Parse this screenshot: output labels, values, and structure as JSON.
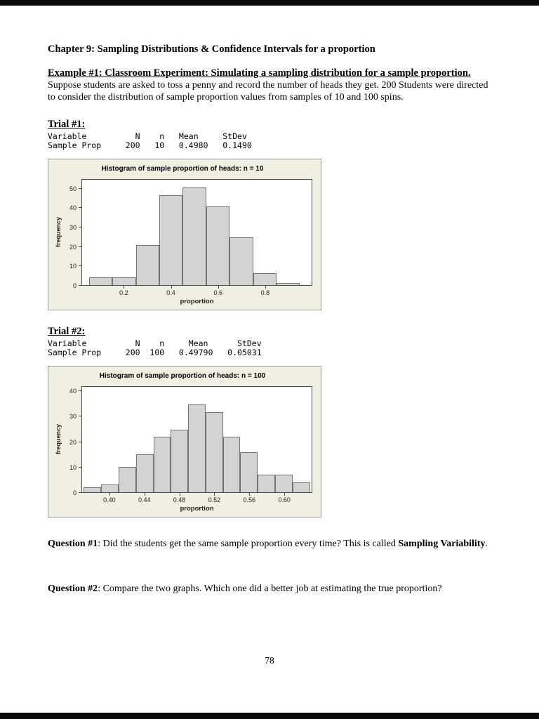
{
  "doc": {
    "chapter_title": "Chapter 9: Sampling Distributions & Confidence Intervals for a proportion",
    "example_heading": "Example #1: Classroom Experiment: Simulating a sampling distribution for a sample proportion.",
    "intro": "Suppose students are asked to toss a penny and record the number of heads they get.  200 Students were directed to consider the distribution of sample proportion values from samples of 10 and 100 spins.",
    "trial1": {
      "heading": "Trial #1:",
      "stats_header": "Variable          N    n   Mean     StDev",
      "stats_row": "Sample Prop     200   10   0.4980   0.1490"
    },
    "trial2": {
      "heading": "Trial #2:",
      "stats_header": "Variable          N    n     Mean      StDev",
      "stats_row": "Sample Prop     200  100   0.49790   0.05031"
    },
    "question1": {
      "label": "Question #1",
      "text": ": Did the students get the same sample proportion every time?  This is called ",
      "term": "Sampling Variability",
      "suffix": "."
    },
    "question2": {
      "label": "Question #2",
      "text": ": Compare the two graphs.  Which one did a better job at estimating the true proportion?"
    },
    "page_number": "78"
  },
  "chart_data": [
    {
      "type": "bar",
      "title": "Histogram of sample proportion of heads: n = 10",
      "xlabel": "proportion",
      "ylabel": "frequency",
      "bin_width": 0.1,
      "bins": [
        0.1,
        0.2,
        0.3,
        0.4,
        0.5,
        0.6,
        0.7,
        0.8,
        0.9
      ],
      "values": [
        4,
        4,
        21,
        47,
        51,
        41,
        25,
        6,
        1
      ],
      "xlim": [
        0.02,
        1.0
      ],
      "ylim": [
        0,
        55
      ],
      "yticks": [
        0,
        10,
        20,
        30,
        40,
        50
      ],
      "xticks": [
        0.2,
        0.4,
        0.6,
        0.8
      ],
      "xtick_labels": [
        "0.2",
        "0.4",
        "0.6",
        "0.8"
      ],
      "grid": false,
      "legend": "none",
      "bar_fill": "#d3d3d3",
      "bar_edge": "#737373"
    },
    {
      "type": "bar",
      "title": "Histogram of sample proportion of heads: n = 100",
      "xlabel": "proportion",
      "ylabel": "frequency",
      "bin_width": 0.02,
      "bins": [
        0.38,
        0.4,
        0.42,
        0.44,
        0.46,
        0.48,
        0.5,
        0.52,
        0.54,
        0.56,
        0.58,
        0.6,
        0.62
      ],
      "values": [
        2,
        3,
        10,
        15,
        22,
        25,
        35,
        32,
        22,
        16,
        7,
        7,
        4
      ],
      "xlim": [
        0.368,
        0.632
      ],
      "ylim": [
        0,
        42
      ],
      "yticks": [
        0,
        10,
        20,
        30,
        40
      ],
      "xticks": [
        0.4,
        0.44,
        0.48,
        0.52,
        0.56,
        0.6
      ],
      "xtick_labels": [
        "0.40",
        "0.44",
        "0.48",
        "0.52",
        "0.56",
        "0.60"
      ],
      "grid": false,
      "legend": "none",
      "bar_fill": "#d3d3d3",
      "bar_edge": "#737373"
    }
  ]
}
